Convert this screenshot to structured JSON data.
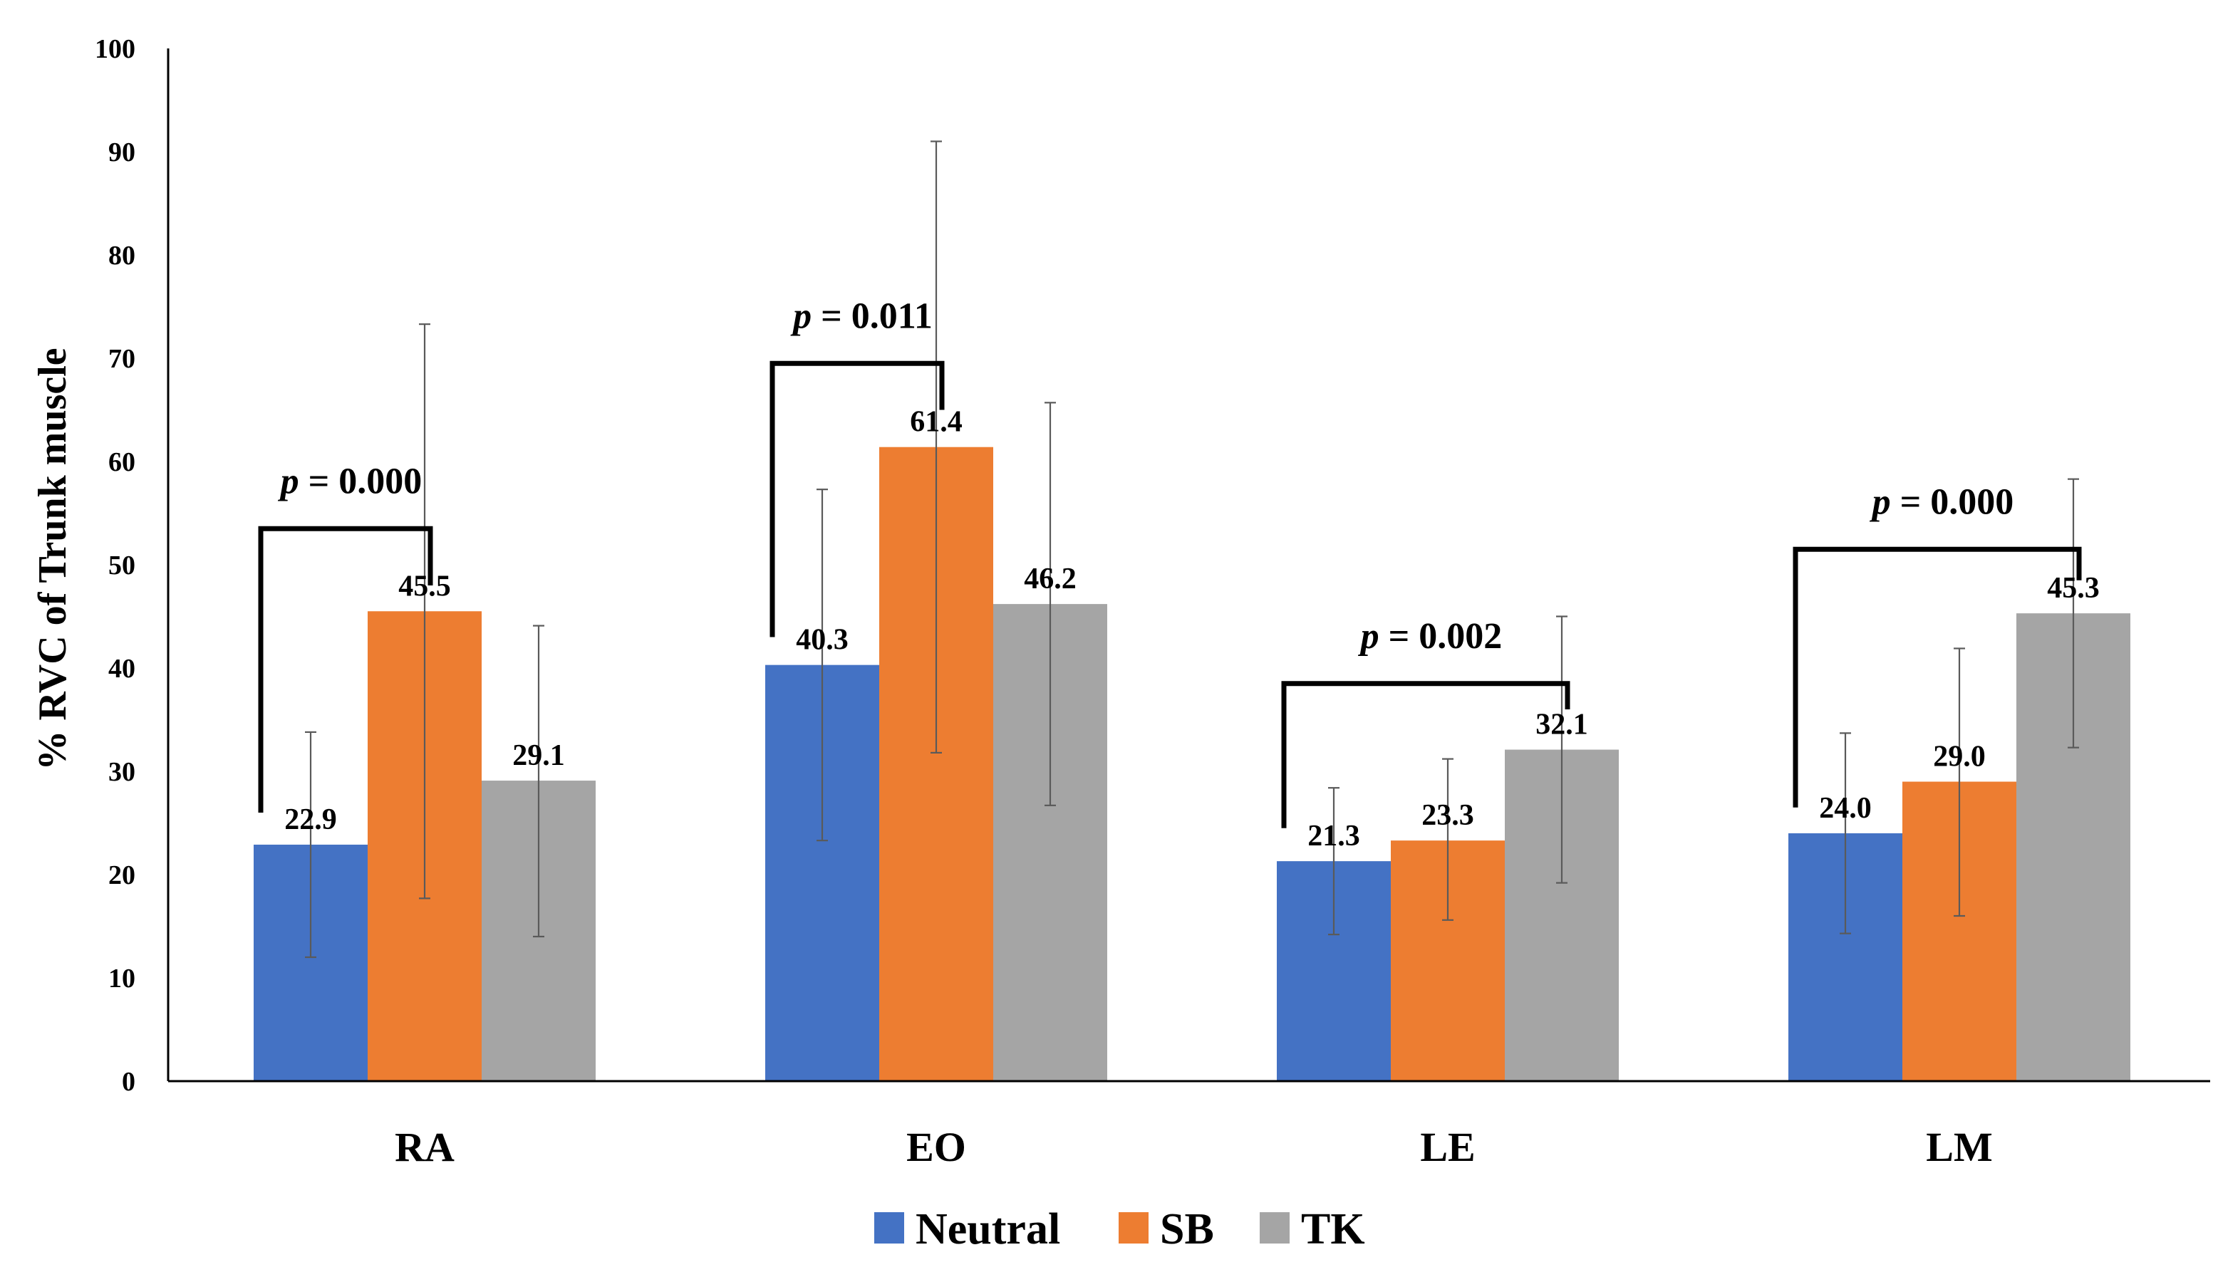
{
  "chart_data": {
    "type": "bar",
    "title": "",
    "xlabel": "",
    "ylabel": "% RVC of Trunk muscle",
    "ylim": [
      0,
      100
    ],
    "yticks": [
      0,
      10,
      20,
      30,
      40,
      50,
      60,
      70,
      80,
      90,
      100
    ],
    "grid": false,
    "legend_position": "bottom",
    "categories": [
      "RA",
      "EO",
      "LE",
      "LM"
    ],
    "series": [
      {
        "name": "Neutral",
        "color": "#4472C4",
        "values": [
          22.9,
          40.3,
          21.3,
          24.0
        ],
        "labels": [
          "22.9",
          "40.3",
          "21.3",
          "24.0"
        ],
        "err_low": [
          12.0,
          23.3,
          14.2,
          14.3
        ],
        "err_high": [
          33.8,
          57.3,
          28.4,
          33.7
        ]
      },
      {
        "name": "SB",
        "color": "#ED7D31",
        "values": [
          45.5,
          61.4,
          23.3,
          29.0
        ],
        "labels": [
          "45.5",
          "61.4",
          "23.3",
          "29.0"
        ],
        "err_low": [
          17.7,
          31.8,
          15.6,
          16.0
        ],
        "err_high": [
          73.3,
          91.0,
          31.2,
          41.9
        ]
      },
      {
        "name": "TK",
        "color": "#A5A5A5",
        "values": [
          29.1,
          46.2,
          32.1,
          45.3
        ],
        "labels": [
          "29.1",
          "46.2",
          "32.1",
          "45.3"
        ],
        "err_low": [
          14.0,
          26.7,
          19.2,
          32.3
        ],
        "err_high": [
          44.1,
          65.7,
          45.0,
          58.3
        ]
      }
    ],
    "annotations": [
      {
        "p_symbol": "p",
        "p_rest": " = 0.000",
        "category": "RA",
        "from_series": 0,
        "to_series": 1,
        "bracket_y": 53.5,
        "left_leg_to": 26.0,
        "right_leg_to": 48.0
      },
      {
        "p_symbol": "p",
        "p_rest": " = 0.011",
        "category": "EO",
        "from_series": 0,
        "to_series": 1,
        "bracket_y": 69.5,
        "left_leg_to": 43.0,
        "right_leg_to": 65.0
      },
      {
        "p_symbol": "p",
        "p_rest": " = 0.002",
        "category": "LE",
        "from_series": 0,
        "to_series": 2,
        "bracket_y": 38.5,
        "left_leg_to": 24.5,
        "right_leg_to": 36.0
      },
      {
        "p_symbol": "p",
        "p_rest": " = 0.000",
        "category": "LM",
        "from_series": 0,
        "to_series": 2,
        "bracket_y": 51.5,
        "left_leg_to": 26.5,
        "right_leg_to": 48.5
      }
    ]
  }
}
